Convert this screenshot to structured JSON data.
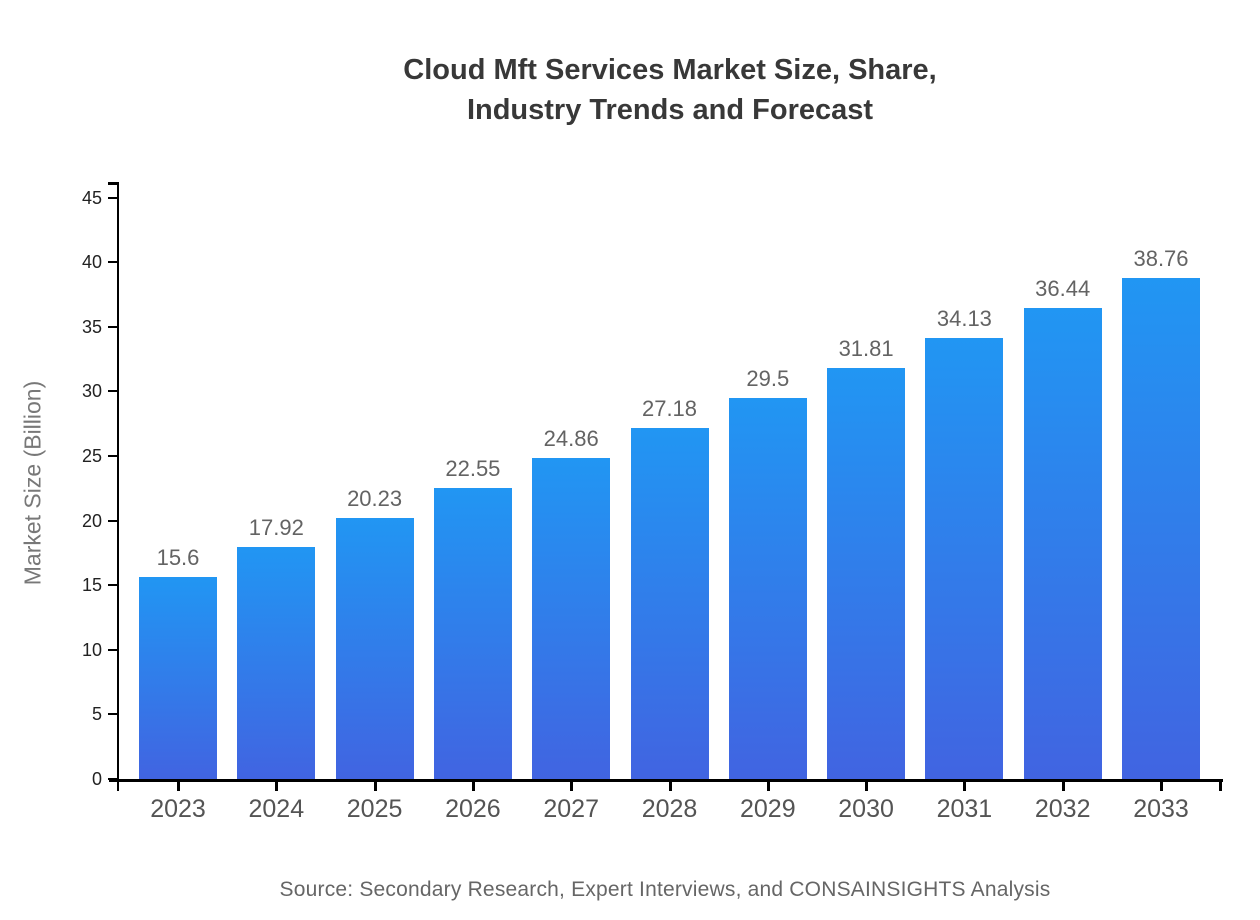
{
  "chart_data": {
    "type": "bar",
    "title_line1": "Cloud Mft Services Market Size, Share,",
    "title_line2": "Industry Trends and Forecast",
    "ylabel": "Market Size (Billion)",
    "xlabel": "",
    "categories": [
      "2023",
      "2024",
      "2025",
      "2026",
      "2027",
      "2028",
      "2029",
      "2030",
      "2031",
      "2032",
      "2033"
    ],
    "values": [
      15.6,
      17.92,
      20.23,
      22.55,
      24.86,
      27.18,
      29.5,
      31.81,
      34.13,
      36.44,
      38.76
    ],
    "yticks": [
      0,
      5,
      10,
      15,
      20,
      25,
      30,
      35,
      40,
      45
    ],
    "ylim": [
      0,
      45
    ],
    "grid": false,
    "legend": false,
    "data_labels_shown": true,
    "colors": {
      "bar_gradient_top": "#2196f3",
      "bar_gradient_bottom": "#4164e1",
      "axis": "#000000",
      "title": "#383838",
      "ytick_label": "#222222",
      "xtick_label": "#545454",
      "data_label": "#636363",
      "axis_title": "#787878",
      "source": "#666666"
    }
  },
  "source_note": "Source: Secondary Research, Expert Interviews, and CONSAINSIGHTS Analysis"
}
